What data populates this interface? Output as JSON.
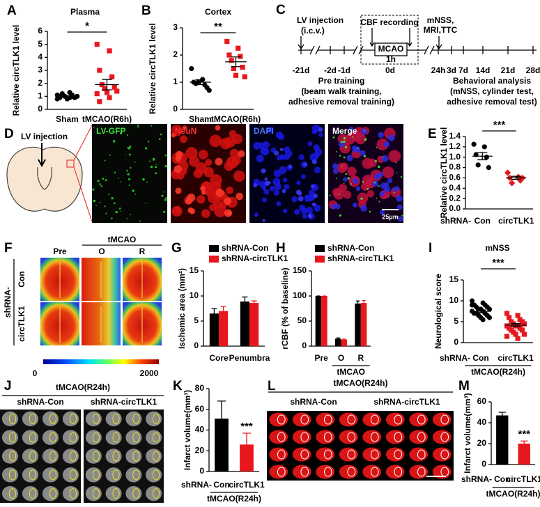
{
  "chart_data": [
    {
      "panel": "A",
      "type": "dotplot",
      "title": "Plasma",
      "ylabel": "Relative circTLK1 level",
      "categories": [
        "Sham",
        "tMCAO(R6h)"
      ],
      "colors": [
        "#000000",
        "#e8171d"
      ],
      "markers": [
        "circle",
        "square"
      ],
      "points": [
        [
          0.8,
          0.9,
          1.0,
          1.1,
          1.2,
          0.9,
          1.0,
          1.0,
          0.8,
          1.1,
          1.3,
          0.9,
          1.0
        ],
        [
          5.0,
          4.5,
          3.0,
          2.5,
          1.9,
          1.7,
          1.6,
          1.4,
          1.3,
          1.2,
          0.9,
          0.6
        ]
      ],
      "means": [
        1.0,
        1.9
      ],
      "sems": [
        0.05,
        0.4
      ],
      "ylim": [
        0,
        6
      ],
      "yticks": [
        0,
        1,
        2,
        3,
        4,
        5,
        6
      ],
      "significance": "*"
    },
    {
      "panel": "B",
      "type": "dotplot",
      "title": "Cortex",
      "ylabel": "Relative circTLK1 level",
      "categories": [
        "Sham",
        "tMCAO(R6h)"
      ],
      "colors": [
        "#000000",
        "#e8171d"
      ],
      "markers": [
        "circle",
        "square"
      ],
      "points": [
        [
          1.5,
          1.1,
          1.0,
          0.9,
          0.95,
          0.8,
          1.0,
          0.7
        ],
        [
          2.5,
          2.25,
          2.0,
          1.95,
          1.8,
          1.55,
          1.5,
          1.2,
          1.25
        ]
      ],
      "means": [
        1.0,
        1.75
      ],
      "sems": [
        0.09,
        0.18
      ],
      "ylim": [
        0,
        3
      ],
      "yticks": [
        0,
        1,
        2,
        3
      ],
      "significance": "**"
    },
    {
      "panel": "E",
      "type": "dotplot",
      "ylabel": "Relative circTLK1 level",
      "xprefix": "shRNA-",
      "categories": [
        "Con",
        "circTLK1"
      ],
      "colors": [
        "#000000",
        "#e8171d"
      ],
      "markers": [
        "circle",
        "diamond"
      ],
      "points": [
        [
          1.25,
          1.2,
          1.05,
          1.0,
          0.85,
          0.8
        ],
        [
          0.7,
          0.62,
          0.6,
          0.55,
          0.5,
          0.6
        ]
      ],
      "means": [
        1.02,
        0.6
      ],
      "sems": [
        0.07,
        0.03
      ],
      "ylim": [
        0,
        1.4
      ],
      "yticks": [
        {
          "value": 0,
          "label": "0.0"
        },
        0.2,
        0.4,
        0.6,
        0.8,
        {
          "value": 1,
          "label": "1.0"
        },
        1.2,
        1.4
      ],
      "significance": "***"
    },
    {
      "panel": "G",
      "type": "bar",
      "ylabel": "Ischemic area (mm²)",
      "categories": [
        "Core",
        "Penumbra"
      ],
      "series": [
        {
          "name": "shRNA-Con",
          "color": "#000000",
          "values": [
            6.5,
            8.9
          ],
          "errors": [
            1.0,
            0.9
          ]
        },
        {
          "name": "shRNA-circTLK1",
          "color": "#e8171d",
          "values": [
            7.0,
            8.6
          ],
          "errors": [
            0.9,
            0.4
          ]
        }
      ],
      "ylim": [
        0,
        15
      ],
      "yticks": [
        0,
        5,
        10,
        15
      ]
    },
    {
      "panel": "H",
      "type": "bar",
      "ylabel": "rCBF (% of baseline)",
      "categories": [
        "Pre",
        "O",
        "R"
      ],
      "group_label": "tMCAO",
      "series": [
        {
          "name": "shRNA-Con",
          "color": "#000000",
          "values": [
            100,
            15,
            85
          ],
          "errors": [
            0,
            1.5,
            5
          ]
        },
        {
          "name": "shRNA-circTLK1",
          "color": "#e8171d",
          "values": [
            100,
            13,
            86
          ],
          "errors": [
            0,
            1,
            5
          ]
        }
      ],
      "ylim": [
        0,
        150
      ],
      "yticks": [
        0,
        50,
        100,
        150
      ]
    },
    {
      "panel": "I",
      "type": "dotplot",
      "title": "mNSS",
      "ylabel": "Neurological score",
      "xprefix": "shRNA-",
      "categories": [
        "Con",
        "circTLK1"
      ],
      "group_label": "tMCAO(R24h)",
      "colors": [
        "#000000",
        "#e8171d"
      ],
      "markers": [
        "circle",
        "square"
      ],
      "points": [
        [
          10,
          9.5,
          9,
          9,
          8.5,
          8.5,
          8,
          8,
          8,
          7.5,
          7.5,
          7,
          7,
          7,
          6.5,
          6.5,
          6,
          6,
          9,
          5.5
        ],
        [
          7,
          6.5,
          6,
          5.5,
          5,
          5,
          4.5,
          4.5,
          4,
          4,
          4,
          3.5,
          3.5,
          3,
          3,
          2.5,
          2,
          2,
          1.5,
          1
        ]
      ],
      "means": [
        7.5,
        4.2
      ],
      "sems": [
        0.3,
        0.35
      ],
      "ylim": [
        0,
        15
      ],
      "yticks": [
        0,
        5,
        10,
        15
      ],
      "significance": "***"
    },
    {
      "panel": "K",
      "type": "bar",
      "ylabel": "Infarct volume(mm³)",
      "xprefix": "shRNA-",
      "categories": [
        "Con",
        "circTLK1"
      ],
      "group_label": "tMCAO(R24h)",
      "values": [
        51,
        26
      ],
      "errors": [
        17,
        11
      ],
      "colors": [
        "#000000",
        "#e8171d"
      ],
      "ylim": [
        0,
        80
      ],
      "yticks": [
        0,
        20,
        40,
        60,
        80
      ],
      "significance": "***"
    },
    {
      "panel": "M",
      "type": "bar",
      "ylabel": "Infarct volume(mm³)",
      "xprefix": "shRNA-",
      "categories": [
        "Con",
        "circTLK1"
      ],
      "group_label": "tMCAO(R24h)",
      "values": [
        47,
        20
      ],
      "errors": [
        3,
        2.5
      ],
      "colors": [
        "#000000",
        "#e8171d"
      ],
      "ylim": [
        0,
        60
      ],
      "yticks": [
        0,
        20,
        40,
        60
      ],
      "significance": "***"
    }
  ],
  "panels": {
    "C": {
      "letter": "C",
      "lv_injection": [
        "LV injection",
        "(i.c.v.)"
      ],
      "cbf": "CBF recording",
      "mcao": "MCAO",
      "duration": "1h",
      "tests": [
        "mNSS,",
        "MRI,TTC"
      ],
      "days": [
        "-21d",
        "-2d",
        "-1d",
        "0d",
        "24h",
        "3d",
        "7d",
        "14d",
        "21d",
        "28d"
      ],
      "pre_training": [
        "Pre training",
        "(beam walk training,",
        "adhesive removal training)"
      ],
      "behavior": [
        "Behavioral analysis",
        "(mNSS, cylinder test,",
        "adhesive removal test)"
      ]
    },
    "D": {
      "letter": "D",
      "lv_injection": "LV injection",
      "channels": [
        "LV-GFP",
        "NeuN",
        "DAPI",
        "Merge"
      ],
      "scale_bar": "25μm"
    },
    "F": {
      "letter": "F",
      "condition": "tMCAO",
      "columns": [
        "Pre",
        "O",
        "R"
      ],
      "row_prefix": "shRNA-",
      "rows": [
        "Con",
        "circTLK1"
      ],
      "colorbar": [
        0,
        2000
      ]
    },
    "J": {
      "letter": "J",
      "condition": "tMCAO(R24h)",
      "groups": [
        "shRNA-Con",
        "shRNA-circTLK1"
      ]
    },
    "L": {
      "letter": "L",
      "condition": "tMCAO(R24h)",
      "groups": [
        "shRNA-Con",
        "shRNA-circTLK1"
      ]
    }
  }
}
